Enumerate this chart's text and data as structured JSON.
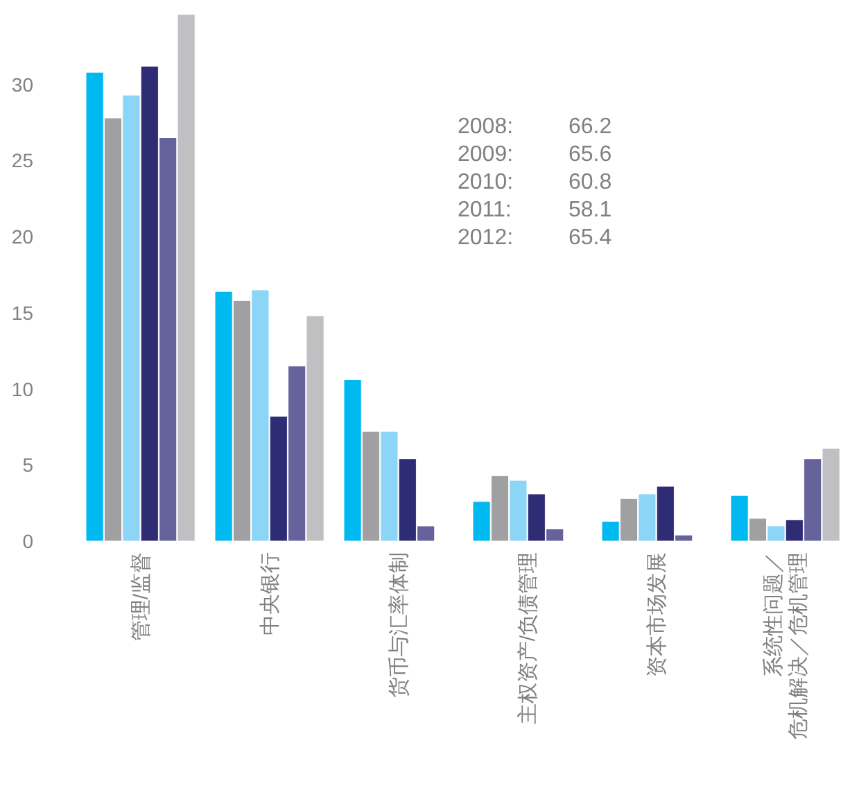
{
  "chart_data": {
    "type": "bar",
    "categories": [
      "管理/监督",
      "中央银行",
      "货币与汇率体制",
      "主权资产/负债管理",
      "资本市场发展",
      "系统性问题／危机解决／危机管理"
    ],
    "series": [
      {
        "color": "#00b9f1",
        "values": [
          30.8,
          16.4,
          10.6,
          2.6,
          1.3,
          3.0
        ]
      },
      {
        "color": "#a0a0a2",
        "values": [
          27.8,
          15.8,
          7.2,
          4.3,
          2.8,
          1.5
        ]
      },
      {
        "color": "#8dd5f7",
        "values": [
          29.3,
          16.5,
          7.2,
          4.0,
          3.1,
          1.0
        ]
      },
      {
        "color": "#2e2c75",
        "values": [
          31.2,
          8.2,
          5.4,
          3.1,
          3.6,
          1.4
        ]
      },
      {
        "color": "#66629b",
        "values": [
          26.5,
          11.5,
          1.0,
          0.8,
          0.4,
          5.4
        ]
      },
      {
        "color": "#c0c0c2",
        "values": [
          34.6,
          14.8,
          null,
          null,
          null,
          6.1
        ]
      }
    ],
    "ylim": [
      0,
      35
    ],
    "yticks": [
      0,
      5,
      10,
      15,
      20,
      25,
      30
    ],
    "grid": false,
    "annotations": [
      "2008:  66.2",
      "2009:  65.6",
      "2010:  60.8",
      "2011:  58.1",
      "2012:  65.4"
    ]
  }
}
